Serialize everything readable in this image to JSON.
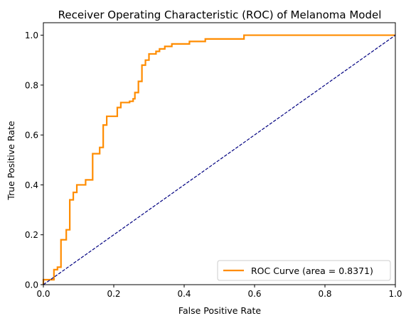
{
  "chart_data": {
    "type": "line",
    "title": "Receiver Operating Characteristic (ROC) of Melanoma Model",
    "xlabel": "False Positive Rate",
    "ylabel": "True Positive Rate",
    "xlim": [
      0.0,
      1.0
    ],
    "ylim": [
      0.0,
      1.05
    ],
    "x_ticks": [
      "0.0",
      "0.2",
      "0.4",
      "0.6",
      "0.8",
      "1.0"
    ],
    "y_ticks": [
      "0.0",
      "0.2",
      "0.4",
      "0.6",
      "0.8",
      "1.0"
    ],
    "x_tick_values": [
      0.0,
      0.2,
      0.4,
      0.6,
      0.8,
      1.0
    ],
    "y_tick_values": [
      0.0,
      0.2,
      0.4,
      0.6,
      0.8,
      1.0
    ],
    "grid": false,
    "legend_position": "bottom-right",
    "series": [
      {
        "name": "ROC Curve (area = 0.8371)",
        "color": "#ff8c00",
        "style": "solid",
        "points": [
          [
            0.0,
            0.0
          ],
          [
            0.0,
            0.02
          ],
          [
            0.03,
            0.02
          ],
          [
            0.03,
            0.06
          ],
          [
            0.04,
            0.06
          ],
          [
            0.04,
            0.07
          ],
          [
            0.05,
            0.07
          ],
          [
            0.05,
            0.18
          ],
          [
            0.065,
            0.18
          ],
          [
            0.065,
            0.22
          ],
          [
            0.075,
            0.22
          ],
          [
            0.075,
            0.34
          ],
          [
            0.085,
            0.34
          ],
          [
            0.085,
            0.37
          ],
          [
            0.095,
            0.37
          ],
          [
            0.095,
            0.4
          ],
          [
            0.12,
            0.4
          ],
          [
            0.12,
            0.42
          ],
          [
            0.14,
            0.42
          ],
          [
            0.14,
            0.525
          ],
          [
            0.16,
            0.525
          ],
          [
            0.16,
            0.55
          ],
          [
            0.17,
            0.55
          ],
          [
            0.17,
            0.64
          ],
          [
            0.18,
            0.64
          ],
          [
            0.18,
            0.675
          ],
          [
            0.21,
            0.675
          ],
          [
            0.21,
            0.71
          ],
          [
            0.22,
            0.71
          ],
          [
            0.22,
            0.73
          ],
          [
            0.245,
            0.73
          ],
          [
            0.245,
            0.735
          ],
          [
            0.255,
            0.735
          ],
          [
            0.255,
            0.745
          ],
          [
            0.26,
            0.745
          ],
          [
            0.26,
            0.77
          ],
          [
            0.27,
            0.77
          ],
          [
            0.27,
            0.815
          ],
          [
            0.28,
            0.815
          ],
          [
            0.28,
            0.88
          ],
          [
            0.29,
            0.88
          ],
          [
            0.29,
            0.9
          ],
          [
            0.3,
            0.9
          ],
          [
            0.3,
            0.925
          ],
          [
            0.32,
            0.925
          ],
          [
            0.32,
            0.935
          ],
          [
            0.33,
            0.935
          ],
          [
            0.33,
            0.945
          ],
          [
            0.345,
            0.945
          ],
          [
            0.345,
            0.955
          ],
          [
            0.365,
            0.955
          ],
          [
            0.365,
            0.965
          ],
          [
            0.415,
            0.965
          ],
          [
            0.415,
            0.975
          ],
          [
            0.46,
            0.975
          ],
          [
            0.46,
            0.985
          ],
          [
            0.57,
            0.985
          ],
          [
            0.57,
            1.0
          ],
          [
            1.0,
            1.0
          ]
        ]
      },
      {
        "name": "",
        "color": "#000080",
        "style": "dashed",
        "points": [
          [
            0.0,
            0.0
          ],
          [
            1.0,
            1.0
          ]
        ]
      }
    ]
  }
}
